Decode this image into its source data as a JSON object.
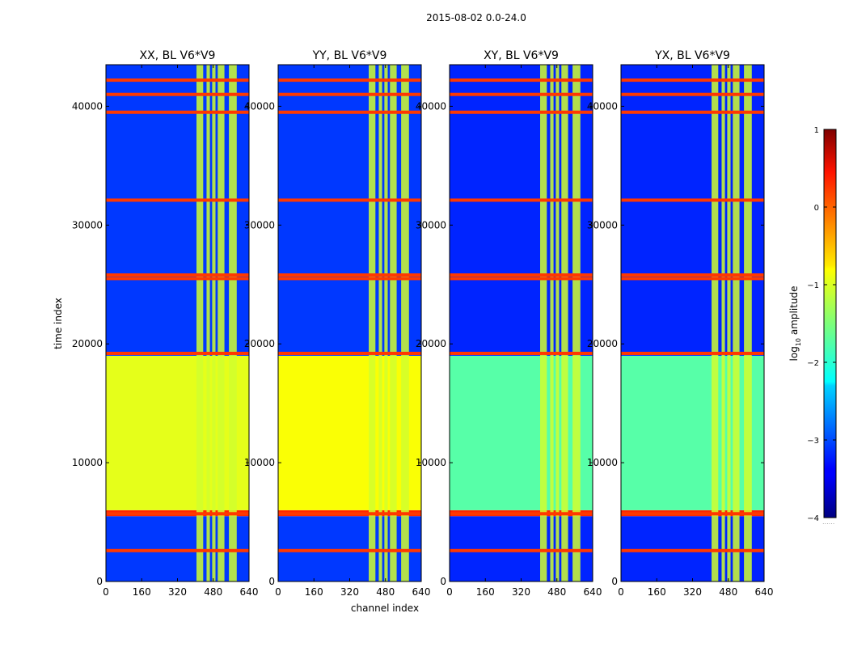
{
  "chart_data": {
    "type": "heatmap",
    "suptitle": "2015-08-02 0.0-24.0",
    "xlabel": "channel index",
    "ylabel": "time index",
    "xlim": [
      0,
      640
    ],
    "ylim": [
      0,
      43500
    ],
    "xticks": [
      0,
      160,
      320,
      480,
      640
    ],
    "yticks": [
      0,
      10000,
      20000,
      30000,
      40000
    ],
    "panels": [
      {
        "title": "XX, BL V6*V9",
        "polarization": "XX",
        "quiet_log_amp": -3.1,
        "day_log_amp": -1.0
      },
      {
        "title": "YY, BL V6*V9",
        "polarization": "YY",
        "quiet_log_amp": -3.1,
        "day_log_amp": -0.9
      },
      {
        "title": "XY, BL V6*V9",
        "polarization": "XY",
        "quiet_log_amp": -3.2,
        "day_log_amp": -1.7
      },
      {
        "title": "YX, BL V6*V9",
        "polarization": "YX",
        "quiet_log_amp": -3.2,
        "day_log_amp": -1.7
      }
    ],
    "bright_channel_bands": [
      [
        405,
        435
      ],
      [
        450,
        465
      ],
      [
        475,
        490
      ],
      [
        500,
        530
      ],
      [
        550,
        585
      ]
    ],
    "time_segments": [
      {
        "t_start": 0,
        "t_end": 5500,
        "state": "noisy-quiet"
      },
      {
        "t_start": 5500,
        "t_end": 6000,
        "state": "strong-flag"
      },
      {
        "t_start": 6000,
        "t_end": 19000,
        "state": "daytime-high"
      },
      {
        "t_start": 19000,
        "t_end": 43500,
        "state": "noisy-quiet"
      }
    ],
    "flag_rows": [
      2600,
      5700,
      19200,
      25500,
      25800,
      32100,
      39500,
      41000,
      42200
    ],
    "colorbar": {
      "label_prefix": "log",
      "label_subscript": "10",
      "label_suffix": " amplitude",
      "vmin": -4,
      "vmax": 1,
      "ticks": [
        "1",
        "0",
        "−1",
        "−2",
        "−3",
        "−4"
      ],
      "tick_values": [
        1,
        0,
        -1,
        -2,
        -3,
        -4
      ],
      "colormap": "jet"
    }
  }
}
